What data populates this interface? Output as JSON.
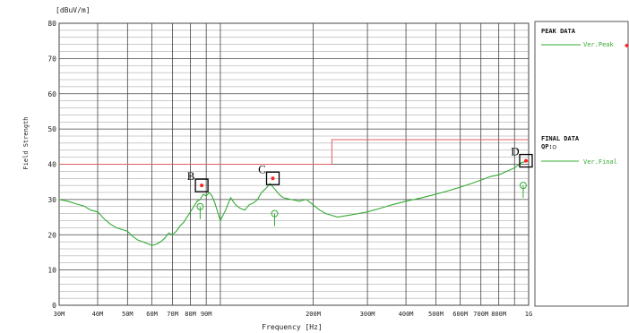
{
  "chart_data": {
    "type": "line",
    "y_unit": "[dBuV/m]",
    "ylabel": "Field Strength",
    "xlabel": "Frequency [Hz]",
    "x_scale": "log",
    "xlim": [
      30000000,
      1000000000
    ],
    "ylim": [
      0,
      80
    ],
    "grid": true,
    "y_ticks": [
      0,
      10,
      20,
      30,
      40,
      50,
      60,
      70,
      80
    ],
    "x_ticks": [
      {
        "value": 30000000,
        "label": "30M"
      },
      {
        "value": 40000000,
        "label": "40M"
      },
      {
        "value": 50000000,
        "label": "50M"
      },
      {
        "value": 60000000,
        "label": "60M"
      },
      {
        "value": 70000000,
        "label": "70M"
      },
      {
        "value": 80000000,
        "label": "80M"
      },
      {
        "value": 90000000,
        "label": "90M"
      },
      {
        "value": 200000000,
        "label": "200M"
      },
      {
        "value": 300000000,
        "label": "300M"
      },
      {
        "value": 400000000,
        "label": "400M"
      },
      {
        "value": 500000000,
        "label": "500M"
      },
      {
        "value": 600000000,
        "label": "600M"
      },
      {
        "value": 700000000,
        "label": "700M"
      },
      {
        "value": 800000000,
        "label": "800M"
      },
      {
        "value": 1000000000,
        "label": "1G"
      }
    ],
    "limit_line": {
      "color": "#e06060",
      "points": [
        [
          30000000,
          40
        ],
        [
          230000000,
          40
        ],
        [
          230000000,
          47
        ],
        [
          1000000000,
          47
        ]
      ]
    },
    "series": [
      {
        "name": "Ver.Peak",
        "color": "#33aa33",
        "x": [
          30000000,
          32000000,
          34000000,
          36000000,
          38000000,
          40000000,
          42000000,
          44000000,
          46000000,
          48000000,
          50000000,
          52000000,
          54000000,
          56000000,
          58000000,
          60000000,
          62000000,
          64000000,
          66000000,
          68000000,
          70000000,
          72000000,
          74000000,
          76000000,
          78000000,
          80000000,
          82000000,
          84000000,
          86000000,
          88000000,
          90000000,
          92000000,
          94000000,
          96000000,
          100000000,
          104000000,
          108000000,
          112000000,
          116000000,
          120000000,
          124000000,
          128000000,
          132000000,
          136000000,
          140000000,
          145000000,
          150000000,
          155000000,
          160000000,
          170000000,
          180000000,
          190000000,
          200000000,
          210000000,
          220000000,
          230000000,
          240000000,
          260000000,
          280000000,
          300000000,
          330000000,
          360000000,
          400000000,
          450000000,
          500000000,
          550000000,
          600000000,
          650000000,
          700000000,
          750000000,
          800000000,
          850000000,
          900000000,
          950000000,
          1000000000
        ],
        "y": [
          30,
          29.5,
          28.8,
          28.2,
          27,
          26.5,
          24.5,
          23,
          22,
          21.5,
          21,
          19.5,
          18.5,
          18,
          17.5,
          17,
          17.3,
          18,
          19,
          20.5,
          20,
          21,
          22.5,
          23.5,
          25,
          26.5,
          28,
          29.5,
          30,
          31.5,
          31,
          32,
          31,
          29,
          24,
          27,
          30.5,
          28.5,
          27.5,
          27,
          28.5,
          29,
          30,
          32,
          33,
          34.5,
          33,
          31.5,
          30.5,
          30,
          29.5,
          30,
          28.5,
          27,
          26,
          25.5,
          25,
          25.5,
          26,
          26.5,
          27.5,
          28.5,
          29.5,
          30.5,
          31.5,
          32.5,
          33.5,
          34.5,
          35.5,
          36.5,
          37,
          38,
          39,
          40.5,
          41
        ]
      },
      {
        "name": "Ver.Final",
        "color": "#33aa33"
      }
    ],
    "final_points": [
      {
        "x": 86000000,
        "y": 28
      },
      {
        "x": 150000000,
        "y": 26
      },
      {
        "x": 960000000,
        "y": 34
      }
    ],
    "markers": [
      {
        "label": "B",
        "x": 87000000,
        "y": 34
      },
      {
        "label": "C",
        "x": 148000000,
        "y": 36
      },
      {
        "label": "D",
        "x": 980000000,
        "y": 41
      }
    ]
  },
  "legend": {
    "peak_title": "PEAK DATA",
    "peak_label": "Ver.Peak",
    "final_title": "FINAL DATA",
    "final_qp": "QP:○",
    "final_label": "Ver.Final"
  },
  "colors": {
    "grid": "#444444",
    "marker": "#ff2222",
    "box": "#000000"
  }
}
